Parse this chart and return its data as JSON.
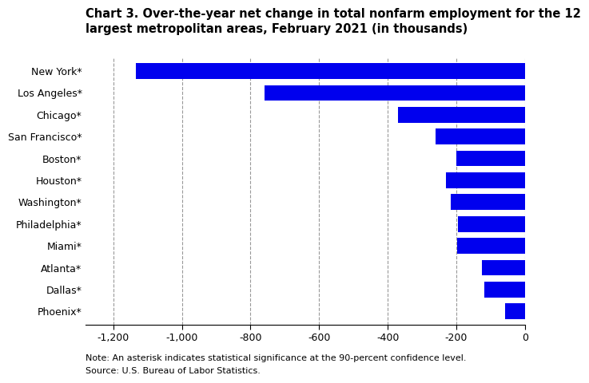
{
  "title_line1": "Chart 3. Over-the-year net change in total nonfarm employment for the 12",
  "title_line2": "largest metropolitan areas, February 2021 (in thousands)",
  "categories": [
    "New York*",
    "Los Angeles*",
    "Chicago*",
    "San Francisco*",
    "Boston*",
    "Houston*",
    "Washington*",
    "Philadelphia*",
    "Miami*",
    "Atlanta*",
    "Dallas*",
    "Phoenix*"
  ],
  "values": [
    -1134,
    -760,
    -370,
    -261,
    -200,
    -230,
    -215,
    -195,
    -197,
    -125,
    -118,
    -58
  ],
  "bar_color": "#0000EE",
  "xlim": [
    -1280,
    0
  ],
  "xticks": [
    -1200,
    -1000,
    -800,
    -600,
    -400,
    -200,
    0
  ],
  "xticklabels": [
    "-1,200",
    "-1,000",
    "-800",
    "-600",
    "-400",
    "-200",
    "0"
  ],
  "grid_color": "#999999",
  "note": "Note: An asterisk indicates statistical significance at the 90-percent confidence level.",
  "source": "Source: U.S. Bureau of Labor Statistics.",
  "background_color": "#ffffff",
  "title_fontsize": 10.5,
  "axis_fontsize": 9,
  "note_fontsize": 8,
  "bar_height": 0.72
}
